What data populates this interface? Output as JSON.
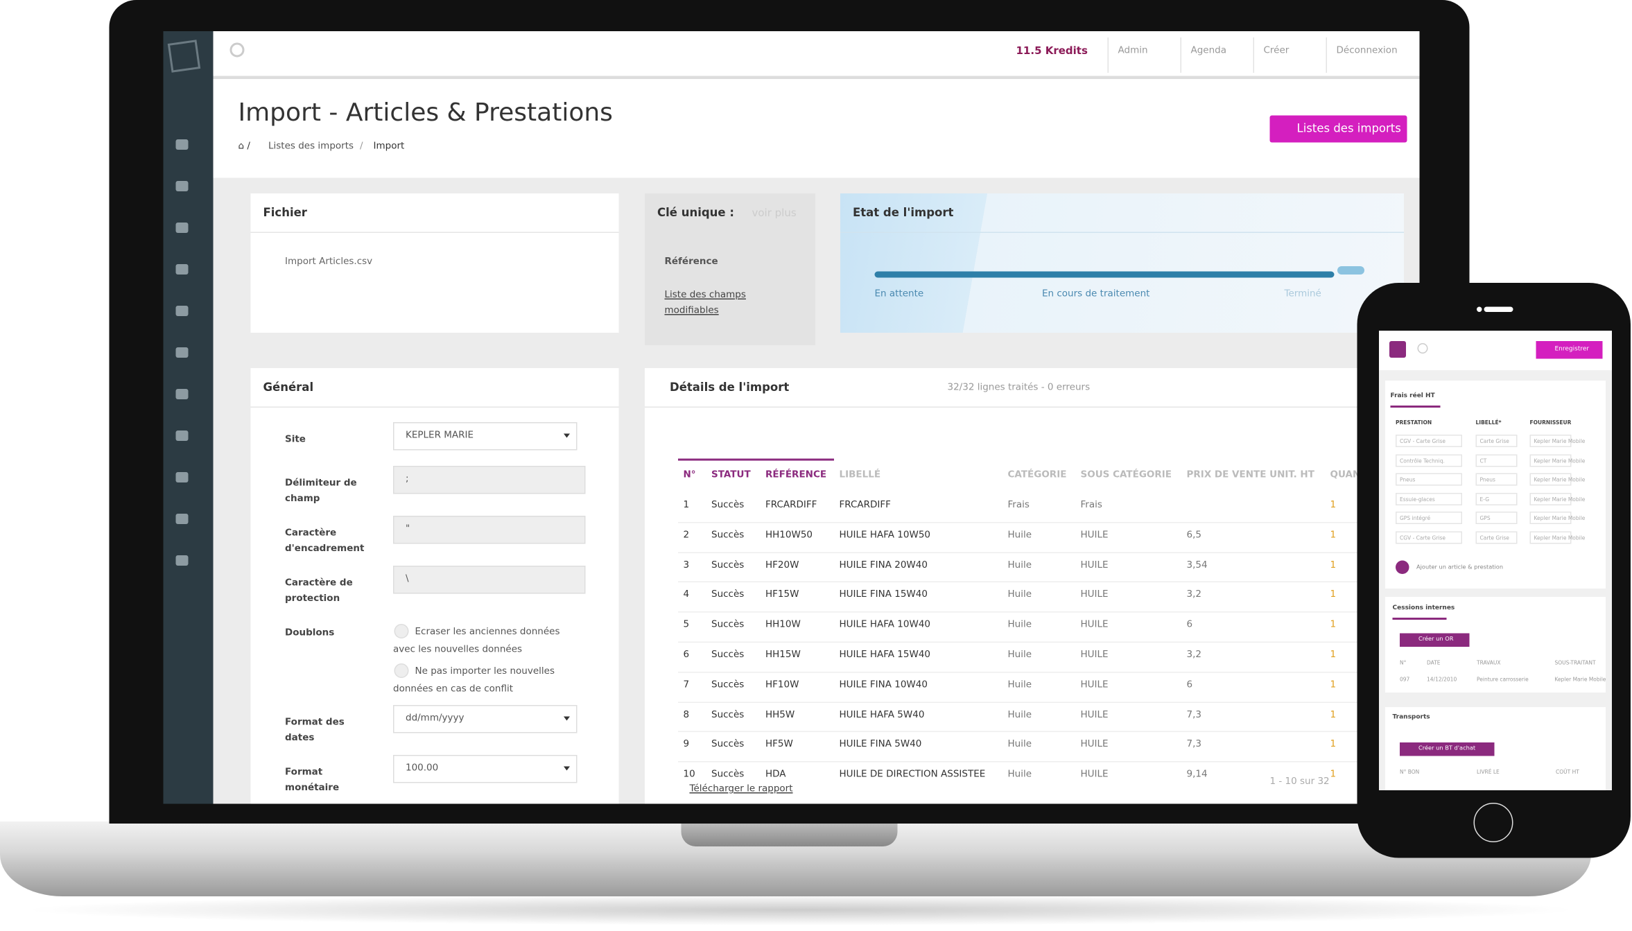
{
  "topbar": {
    "credits": "11.5 Kredits",
    "menu": [
      "Admin",
      "Agenda",
      "Créer",
      "Déconnexion"
    ]
  },
  "header": {
    "title": "Import - Articles & Prestations",
    "breadcrumb": [
      "Listes des imports",
      "Import"
    ],
    "button": "Listes des imports"
  },
  "fichier": {
    "title": "Fichier",
    "file": "Import Articles.csv"
  },
  "cle": {
    "title": "Clé unique :",
    "more": "voir plus",
    "reference": "Référence",
    "link": "Liste des champs modifiables"
  },
  "etat": {
    "title": "Etat de l'import",
    "steps": [
      "En attente",
      "En cours de traitement",
      "Terminé"
    ]
  },
  "general": {
    "title": "Général",
    "fields": [
      {
        "label": "Site",
        "value": "KEPLER MARIE",
        "kind": "select"
      },
      {
        "label": "Délimiteur de champ",
        "value": ";",
        "kind": "input"
      },
      {
        "label": "Caractère d'encadrement",
        "value": "\"",
        "kind": "input"
      },
      {
        "label": "Caractère de protection",
        "value": "\\",
        "kind": "input"
      },
      {
        "label": "Doublons",
        "options": [
          "Ecraser les anciennes données avec les nouvelles données",
          "Ne pas importer les nouvelles données en cas de conflit"
        ],
        "kind": "radio"
      },
      {
        "label": "Format des dates",
        "value": "dd/mm/yyyy",
        "kind": "select"
      },
      {
        "label": "Format monétaire",
        "value": "100.00",
        "kind": "select"
      }
    ]
  },
  "details": {
    "title": "Détails de l'import",
    "summary": "32/32 lignes traités - 0 erreurs",
    "columns": [
      "N°",
      "STATUT",
      "RÉFÉRENCE",
      "LIBELLÉ",
      "CATÉGORIE",
      "SOUS CATÉGORIE",
      "PRIX DE VENTE UNIT. HT",
      "QUANTITÉ"
    ],
    "rows": [
      [
        "1",
        "Succès",
        "FRCARDIFF",
        "FRCARDIFF",
        "Frais",
        "Frais",
        null,
        "1"
      ],
      [
        "2",
        "Succès",
        "HH10W50",
        "HUILE HAFA 10W50",
        "Huile",
        "HUILE",
        "6,5",
        "1"
      ],
      [
        "3",
        "Succès",
        "HF20W",
        "HUILE FINA 20W40",
        "Huile",
        "HUILE",
        "3,54",
        "1"
      ],
      [
        "4",
        "Succès",
        "HF15W",
        "HUILE FINA 15W40",
        "Huile",
        "HUILE",
        "3,2",
        "1"
      ],
      [
        "5",
        "Succès",
        "HH10W",
        "HUILE HAFA 10W40",
        "Huile",
        "HUILE",
        "6",
        "1"
      ],
      [
        "6",
        "Succès",
        "HH15W",
        "HUILE HAFA 15W40",
        "Huile",
        "HUILE",
        "3,2",
        "1"
      ],
      [
        "7",
        "Succès",
        "HF10W",
        "HUILE FINA 10W40",
        "Huile",
        "HUILE",
        "6",
        "1"
      ],
      [
        "8",
        "Succès",
        "HH5W",
        "HUILE HAFA 5W40",
        "Huile",
        "HUILE",
        "7,3",
        "1"
      ],
      [
        "9",
        "Succès",
        "HF5W",
        "HUILE FINA 5W40",
        "Huile",
        "HUILE",
        "7,3",
        "1"
      ],
      [
        "10",
        "Succès",
        "HDA",
        "HUILE DE DIRECTION ASSISTEE",
        "Huile",
        "HUILE",
        "9,14",
        "1"
      ]
    ],
    "download": "Télécharger le rapport",
    "pagination": "1 - 10 sur 32"
  },
  "mobile": {
    "save": "Enregistrer",
    "section1": "Frais réel HT",
    "columns1": [
      "PRESTATION",
      "LIBELLÉ*",
      "FOURNISSEUR"
    ],
    "rows1": [
      [
        "CGV - Carte Grise",
        "Carte Grise",
        "Kepler Marie Mobile"
      ],
      [
        "Contrôle Techniq.",
        "CT",
        "Kepler Marie Mobile"
      ],
      [
        "Pneus",
        "Pneus",
        "Kepler Marie Mobile"
      ],
      [
        "Essuie-glaces",
        "E-G",
        "Kepler Marie Mobile"
      ],
      [
        "GPS intégré",
        "GPS",
        "Kepler Marie Mobile"
      ],
      [
        "CGV - Carte Grise",
        "Carte Grise",
        "Kepler Marie Mobile"
      ]
    ],
    "add": "Ajouter un article & prestation",
    "section2": "Cessions internes",
    "button2": "Créer un OR",
    "columns2": [
      "N°",
      "DATE",
      "TRAVAUX",
      "SOUS-TRAITANT"
    ],
    "row2": [
      "097",
      "14/12/2010",
      "Peinture carrosserie",
      "Kepler Marie Mobile"
    ],
    "section3": "Transports",
    "button3": "Créer un BT d'achat",
    "columns3": [
      "N° BON",
      "LIVRÉ LE",
      "COÛT HT"
    ]
  }
}
